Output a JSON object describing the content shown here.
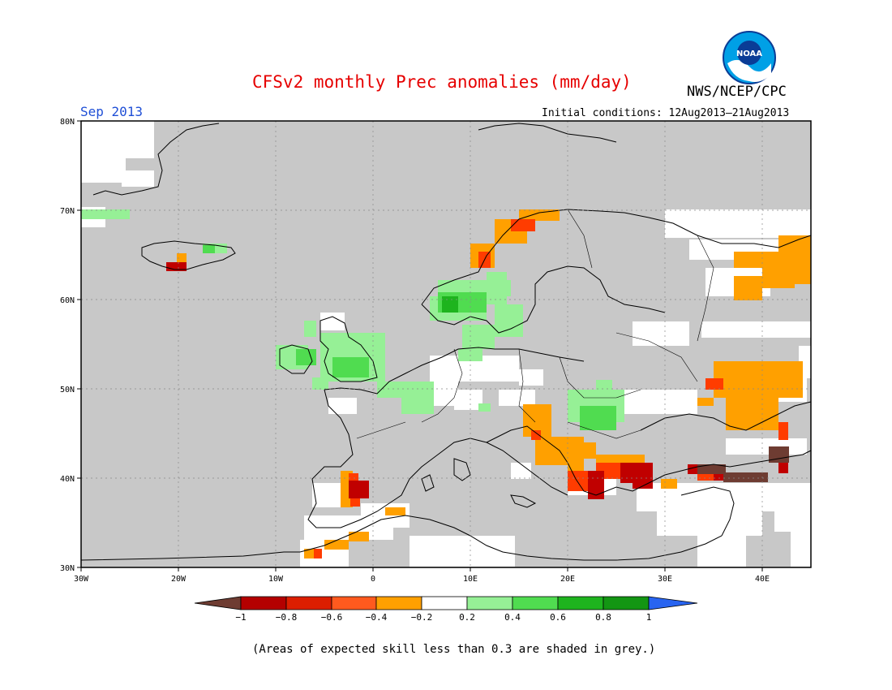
{
  "title": "CFSv2 monthly Prec anomalies (mm/day)",
  "month": "Sep 2013",
  "initial_conditions": "Initial conditions: 12Aug2013–21Aug2013",
  "agency": "NWS/NCEP/CPC",
  "logo_text": "NOAA",
  "footnote": "(Areas of expected skill less than 0.3 are shaded in grey.)",
  "map": {
    "lat_labels": [
      "80N",
      "70N",
      "60N",
      "50N",
      "40N",
      "30N"
    ],
    "lon_labels": [
      "30W",
      "20W",
      "10W",
      "0",
      "10E",
      "20E",
      "30E",
      "40E"
    ],
    "colors": {
      "grey": "#c8c8c8",
      "white": "#ffffff",
      "light_green": "#96f096",
      "green": "#50dc50",
      "dark_green": "#1eb41e",
      "orange": "#ffa000",
      "red_orange": "#ff3c00",
      "dark_red": "#c00000",
      "brown": "#6e3c32"
    }
  },
  "colorbar": {
    "labels": [
      "−1",
      "−0.8",
      "−0.6",
      "−0.4",
      "−0.2",
      "0.2",
      "0.4",
      "0.6",
      "0.8",
      "1"
    ],
    "colors": [
      "#6e3c32",
      "#b40000",
      "#dc1e00",
      "#ff5a1e",
      "#ffa000",
      "#ffffff",
      "#96f096",
      "#50dc50",
      "#1eb41e",
      "#139613",
      "#2864f0"
    ]
  }
}
